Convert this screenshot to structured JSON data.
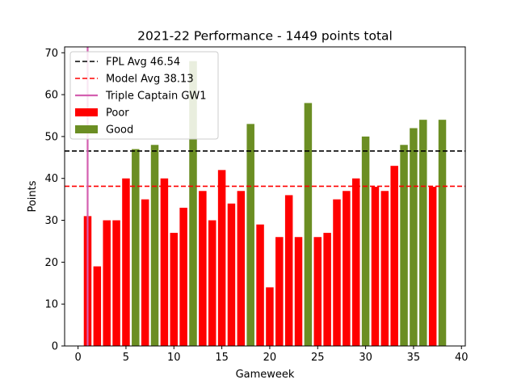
{
  "chart_data": {
    "type": "bar",
    "title": "2021-22 Performance - 1449 points total",
    "xlabel": "Gameweek",
    "ylabel": "Points",
    "xlim": [
      -1.4,
      40.4
    ],
    "ylim": [
      0,
      71.4
    ],
    "xticks": [
      0,
      5,
      10,
      15,
      20,
      25,
      30,
      35,
      40
    ],
    "yticks": [
      0,
      10,
      20,
      30,
      40,
      50,
      60,
      70
    ],
    "grid": false,
    "legend_position": "top-left",
    "x": [
      1,
      2,
      3,
      4,
      5,
      6,
      7,
      8,
      9,
      10,
      11,
      12,
      13,
      14,
      15,
      16,
      17,
      18,
      19,
      20,
      21,
      22,
      23,
      24,
      25,
      26,
      27,
      28,
      29,
      30,
      31,
      32,
      33,
      34,
      35,
      36,
      37,
      38
    ],
    "values": [
      31,
      19,
      30,
      30,
      40,
      47,
      35,
      48,
      40,
      27,
      33,
      68,
      37,
      30,
      42,
      34,
      37,
      53,
      29,
      14,
      26,
      36,
      26,
      58,
      26,
      27,
      35,
      37,
      40,
      50,
      38,
      37,
      43,
      48,
      52,
      54,
      38,
      54
    ],
    "series": [
      {
        "name": "Poor",
        "color": "#ff0000"
      },
      {
        "name": "Good",
        "color": "#6b8e23"
      }
    ],
    "reference_lines": [
      {
        "name": "FPL Avg 46.54",
        "value": 46.54,
        "orientation": "horizontal",
        "style": "dashed",
        "color": "#000000"
      },
      {
        "name": "Model Avg 38.13",
        "value": 38.13,
        "orientation": "horizontal",
        "style": "dashed",
        "color": "#ff0000"
      },
      {
        "name": "Triple Captain GW1",
        "value": 1,
        "orientation": "vertical",
        "style": "solid",
        "color": "#d45fb0"
      }
    ]
  }
}
